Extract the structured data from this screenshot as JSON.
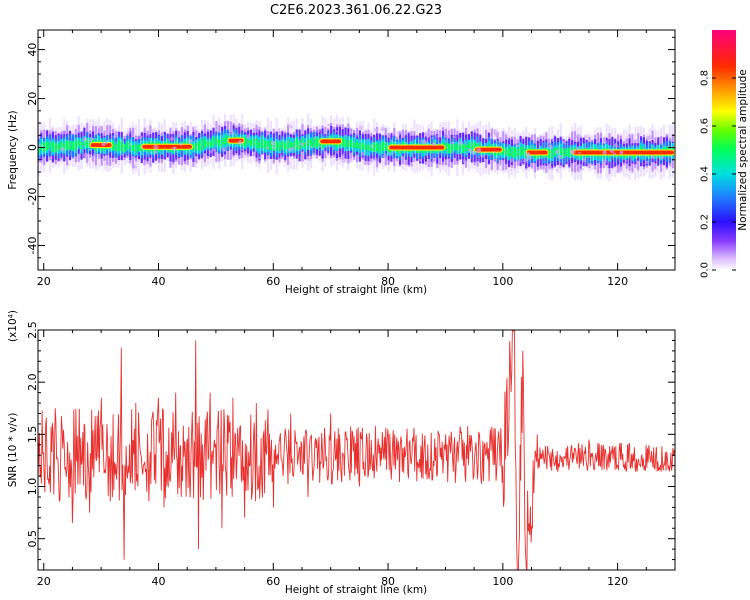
{
  "title": "C2E6.2023.361.06.22.G23",
  "chart_data": [
    {
      "type": "heatmap",
      "xlabel": "Height of straight line (km)",
      "ylabel": "Frequency (Hz)",
      "xlim": [
        19,
        130
      ],
      "ylim": [
        -50,
        48
      ],
      "x_ticks": [
        20,
        40,
        60,
        80,
        100,
        120
      ],
      "y_ticks": [
        40,
        20,
        0,
        -20,
        -40
      ],
      "colorbar": {
        "label": "Normalized spectral amplitude",
        "range": [
          0,
          1
        ],
        "ticks": [
          "0.0",
          "0.2",
          "0.4",
          "0.6",
          "0.8"
        ]
      },
      "ridge": {
        "description_points": [
          [
            19,
            0
          ],
          [
            27,
            1.5
          ],
          [
            36,
            0
          ],
          [
            45,
            0.5
          ],
          [
            53,
            3
          ],
          [
            60,
            0.5
          ],
          [
            70,
            2.5
          ],
          [
            78,
            0
          ],
          [
            95,
            0
          ],
          [
            101,
            -2
          ],
          [
            110,
            -2
          ],
          [
            130,
            -2
          ]
        ],
        "max_amplitude_segments": [
          [
            28,
            32
          ],
          [
            37,
            46
          ],
          [
            52,
            55
          ],
          [
            68,
            72
          ],
          [
            80,
            90
          ],
          [
            95,
            100
          ],
          [
            104,
            108
          ],
          [
            112,
            130
          ]
        ]
      }
    },
    {
      "type": "line",
      "xlabel": "Height of straight line (km)",
      "ylabel": "SNR (10 * v/v)",
      "y_multiplier": "(x10⁴)",
      "xlim": [
        19,
        130
      ],
      "ylim": [
        0.2,
        2.5
      ],
      "x_ticks": [
        20,
        40,
        60,
        80,
        100,
        120
      ],
      "y_ticks": [
        "0.5",
        "1.0",
        "1.5",
        "2.0",
        "2.5"
      ],
      "series": [
        {
          "color": "#e8312f",
          "x_range": [
            19,
            130
          ],
          "points": [
            [
              19,
              1.1
            ],
            [
              21,
              1.2
            ],
            [
              22,
              1.75
            ],
            [
              23,
              1.3
            ],
            [
              25,
              0.65
            ],
            [
              27,
              1.6
            ],
            [
              28,
              0.75
            ],
            [
              30,
              1.85
            ],
            [
              31,
              1.6
            ],
            [
              32,
              0.9
            ],
            [
              33.5,
              2.33
            ],
            [
              34,
              0.3
            ],
            [
              36,
              1.8
            ],
            [
              38,
              0.95
            ],
            [
              40,
              1.85
            ],
            [
              41,
              0.8
            ],
            [
              43,
              1.9
            ],
            [
              44,
              0.9
            ],
            [
              46.5,
              2.4
            ],
            [
              47,
              0.4
            ],
            [
              49,
              1.9
            ],
            [
              51,
              0.6
            ],
            [
              53,
              1.85
            ],
            [
              55,
              0.7
            ],
            [
              57,
              1.8
            ],
            [
              60,
              0.8
            ],
            [
              63,
              1.7
            ],
            [
              66,
              0.9
            ],
            [
              70,
              1.7
            ],
            [
              75,
              1.0
            ],
            [
              80,
              1.55
            ],
            [
              85,
              1.05
            ],
            [
              90,
              1.5
            ],
            [
              95,
              1.1
            ],
            [
              100,
              1.2
            ],
            [
              102,
              2.5
            ],
            [
              102.5,
              0.2
            ],
            [
              103.5,
              2.3
            ],
            [
              104,
              0.35
            ],
            [
              106,
              1.5
            ],
            [
              110,
              1.3
            ],
            [
              115,
              1.45
            ],
            [
              120,
              1.2
            ],
            [
              125,
              1.4
            ],
            [
              130,
              1.25
            ]
          ]
        }
      ]
    }
  ]
}
